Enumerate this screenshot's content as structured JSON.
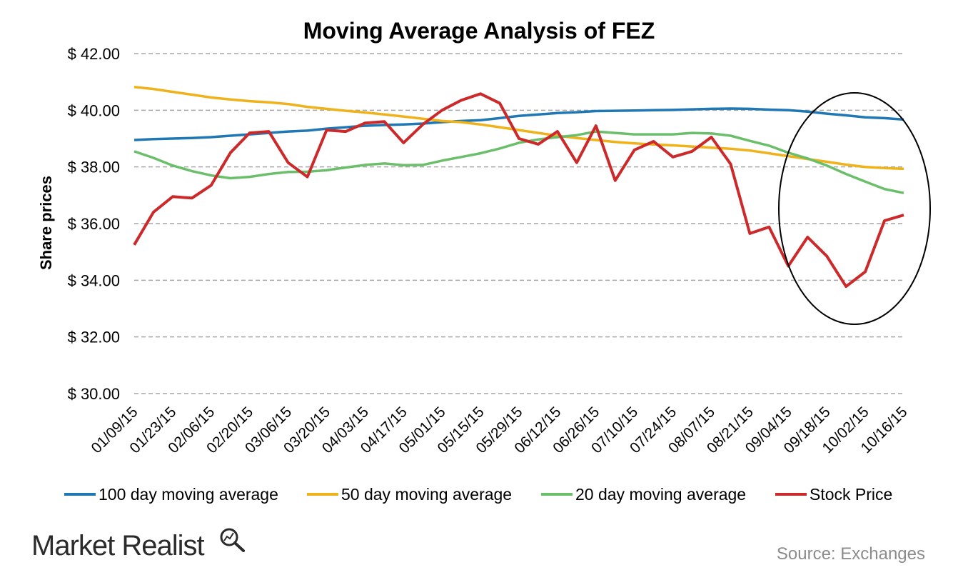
{
  "chart_data": {
    "type": "line",
    "title": "Moving Average Analysis of FEZ",
    "ylabel": "Share prices",
    "xlabel": "",
    "ylim": [
      30,
      42
    ],
    "yticks": [
      30,
      32,
      34,
      36,
      38,
      40,
      42
    ],
    "ytick_labels": [
      "$ 30.00",
      "$ 32.00",
      "$ 34.00",
      "$ 36.00",
      "$ 38.00",
      "$ 40.00",
      "$ 42.00"
    ],
    "xtick_labels": [
      "01/09/15",
      "01/23/15",
      "02/06/15",
      "02/20/15",
      "03/06/15",
      "03/20/15",
      "04/03/15",
      "04/17/15",
      "05/01/15",
      "05/15/15",
      "05/29/15",
      "06/12/15",
      "06/26/15",
      "07/10/15",
      "07/24/15",
      "08/07/15",
      "08/21/15",
      "09/04/15",
      "09/18/15",
      "10/02/15",
      "10/16/15"
    ],
    "grid": "horizontal dashed",
    "legend_position": "bottom",
    "x": [
      "01/09/15",
      "01/16/15",
      "01/23/15",
      "01/30/15",
      "02/06/15",
      "02/13/15",
      "02/20/15",
      "02/27/15",
      "03/06/15",
      "03/13/15",
      "03/20/15",
      "03/27/15",
      "04/03/15",
      "04/10/15",
      "04/17/15",
      "04/24/15",
      "05/01/15",
      "05/08/15",
      "05/15/15",
      "05/22/15",
      "05/29/15",
      "06/05/15",
      "06/12/15",
      "06/19/15",
      "06/26/15",
      "07/03/15",
      "07/10/15",
      "07/17/15",
      "07/24/15",
      "07/31/15",
      "08/07/15",
      "08/14/15",
      "08/21/15",
      "08/28/15",
      "09/04/15",
      "09/11/15",
      "09/18/15",
      "09/25/15",
      "10/02/15",
      "10/09/15",
      "10/16/15"
    ],
    "series": [
      {
        "name": "100 day moving average",
        "color": "#1f77b4",
        "values": [
          38.95,
          38.98,
          39.0,
          39.02,
          39.05,
          39.1,
          39.15,
          39.2,
          39.25,
          39.28,
          39.35,
          39.4,
          39.45,
          39.48,
          39.5,
          39.53,
          39.58,
          39.62,
          39.65,
          39.72,
          39.8,
          39.85,
          39.9,
          39.93,
          39.97,
          39.98,
          39.99,
          40.0,
          40.01,
          40.03,
          40.05,
          40.06,
          40.05,
          40.02,
          40.0,
          39.95,
          39.88,
          39.82,
          39.75,
          39.72,
          39.67
        ]
      },
      {
        "name": "50 day moving average",
        "color": "#f0b21a",
        "values": [
          40.82,
          40.75,
          40.65,
          40.55,
          40.45,
          40.38,
          40.32,
          40.28,
          40.22,
          40.12,
          40.05,
          39.98,
          39.92,
          39.85,
          39.78,
          39.7,
          39.62,
          39.58,
          39.5,
          39.4,
          39.3,
          39.2,
          39.1,
          39.02,
          38.95,
          38.88,
          38.83,
          38.79,
          38.76,
          38.72,
          38.68,
          38.64,
          38.58,
          38.48,
          38.38,
          38.28,
          38.18,
          38.08,
          38.0,
          37.96,
          37.93
        ]
      },
      {
        "name": "20 day moving average",
        "color": "#6bbf6b",
        "values": [
          38.55,
          38.32,
          38.05,
          37.85,
          37.7,
          37.6,
          37.65,
          37.75,
          37.82,
          37.83,
          37.88,
          37.98,
          38.07,
          38.12,
          38.06,
          38.07,
          38.22,
          38.35,
          38.48,
          38.65,
          38.85,
          38.97,
          39.05,
          39.12,
          39.25,
          39.2,
          39.15,
          39.15,
          39.15,
          39.2,
          39.18,
          39.1,
          38.92,
          38.75,
          38.5,
          38.3,
          38.05,
          37.75,
          37.48,
          37.22,
          37.08
        ]
      },
      {
        "name": "Stock Price",
        "color": "#cc2a2a",
        "values": [
          35.25,
          36.4,
          36.95,
          36.9,
          37.35,
          38.5,
          39.2,
          39.25,
          38.15,
          37.65,
          39.3,
          39.25,
          39.55,
          39.6,
          38.85,
          39.5,
          40.0,
          40.35,
          40.58,
          40.25,
          39.0,
          38.8,
          39.25,
          38.15,
          39.45,
          37.52,
          38.6,
          38.9,
          38.35,
          38.55,
          39.05,
          38.1,
          35.65,
          35.88,
          34.5,
          35.52,
          34.85,
          33.78,
          34.3,
          36.1,
          36.3
        ]
      }
    ]
  },
  "branding": {
    "logo_text": "Market Realist",
    "source": "Source: Exchanges"
  }
}
